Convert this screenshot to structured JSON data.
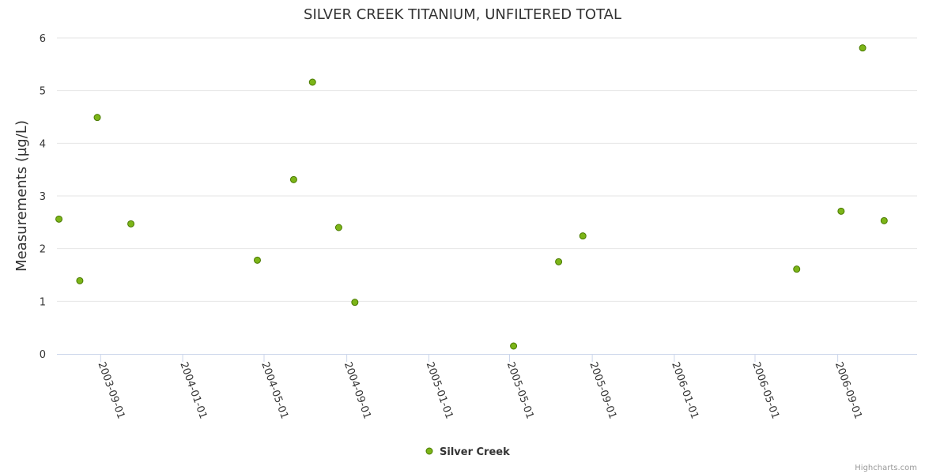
{
  "chart_data": {
    "type": "scatter",
    "title": "SILVER CREEK TITANIUM, UNFILTERED TOTAL",
    "ylabel": "Measurements (µg/L)",
    "xlabel": "",
    "ylim": [
      0,
      6
    ],
    "xlim": [
      "2003-06-28",
      "2006-12-28"
    ],
    "y_ticks": [
      0,
      1,
      2,
      3,
      4,
      5,
      6
    ],
    "x_ticks": [
      "2003-09-01",
      "2004-01-01",
      "2004-05-01",
      "2004-09-01",
      "2005-01-01",
      "2005-05-01",
      "2005-09-01",
      "2006-01-01",
      "2006-05-01",
      "2006-09-01"
    ],
    "grid": true,
    "legend_position": "bottom-center",
    "series": [
      {
        "name": "Silver Creek",
        "color": "#7cb518",
        "points": [
          {
            "x": "2003-07-01",
            "y": 2.56
          },
          {
            "x": "2003-08-01",
            "y": 1.39
          },
          {
            "x": "2003-08-27",
            "y": 4.49
          },
          {
            "x": "2003-10-16",
            "y": 2.47
          },
          {
            "x": "2004-04-21",
            "y": 1.78
          },
          {
            "x": "2004-06-14",
            "y": 3.31
          },
          {
            "x": "2004-07-12",
            "y": 5.16
          },
          {
            "x": "2004-08-20",
            "y": 2.4
          },
          {
            "x": "2004-09-13",
            "y": 0.98
          },
          {
            "x": "2005-05-07",
            "y": 0.15
          },
          {
            "x": "2005-07-13",
            "y": 1.75
          },
          {
            "x": "2005-08-18",
            "y": 2.24
          },
          {
            "x": "2006-07-02",
            "y": 1.61
          },
          {
            "x": "2006-09-06",
            "y": 2.71
          },
          {
            "x": "2006-10-08",
            "y": 5.81
          },
          {
            "x": "2006-11-09",
            "y": 2.53
          }
        ]
      }
    ]
  },
  "legend": {
    "label": "Silver Creek"
  },
  "credits": "Highcharts.com"
}
